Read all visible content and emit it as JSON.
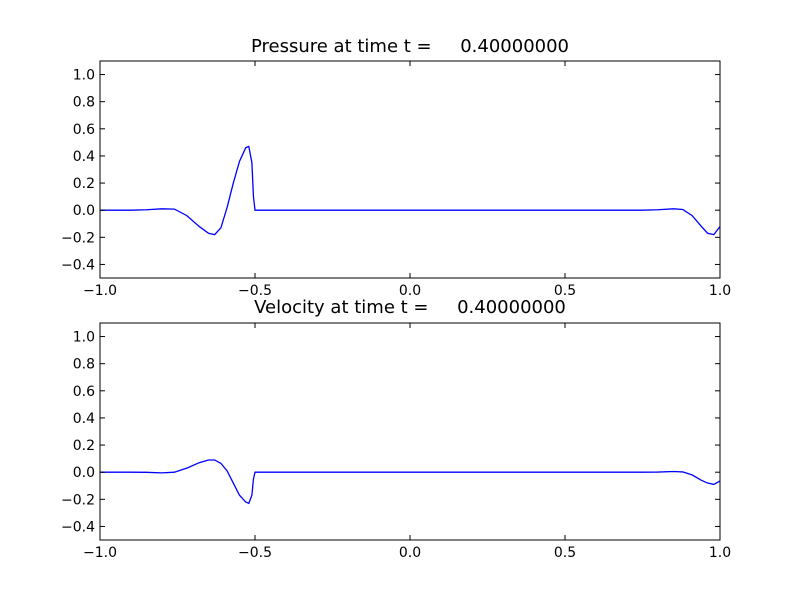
{
  "chart_data": [
    {
      "type": "line",
      "title": "Pressure at time t =     0.40000000",
      "xlabel": "",
      "ylabel": "",
      "xlim": [
        -1.0,
        1.0
      ],
      "ylim": [
        -0.5,
        1.1
      ],
      "xticks": [
        -1.0,
        -0.5,
        0.0,
        0.5,
        1.0
      ],
      "xtick_labels": [
        "−1.0",
        "−0.5",
        "0.0",
        "0.5",
        "1.0"
      ],
      "yticks": [
        -0.4,
        -0.2,
        0.0,
        0.2,
        0.4,
        0.6,
        0.8,
        1.0
      ],
      "ytick_labels": [
        "−0.4",
        "−0.2",
        "0.0",
        "0.2",
        "0.4",
        "0.6",
        "0.8",
        "1.0"
      ],
      "grid": false,
      "color": "#0000ff",
      "series": [
        {
          "x": [
            -1.0,
            -0.9,
            -0.85,
            -0.8,
            -0.76,
            -0.72,
            -0.68,
            -0.65,
            -0.63,
            -0.61,
            -0.59,
            -0.57,
            -0.55,
            -0.53,
            -0.52,
            -0.51,
            -0.505,
            -0.5,
            -0.49,
            -0.4,
            -0.2,
            0.0,
            0.2,
            0.4,
            0.6,
            0.7,
            0.75,
            0.8,
            0.85,
            0.88,
            0.91,
            0.94,
            0.96,
            0.98,
            1.0
          ],
          "y": [
            0.0,
            0.0,
            0.003,
            0.01,
            0.008,
            -0.04,
            -0.12,
            -0.17,
            -0.18,
            -0.13,
            0.02,
            0.2,
            0.36,
            0.46,
            0.47,
            0.35,
            0.1,
            0.0,
            0.0,
            0.0,
            0.0,
            0.0,
            0.0,
            0.0,
            0.0,
            0.0,
            0.0,
            0.003,
            0.01,
            0.005,
            -0.04,
            -0.12,
            -0.17,
            -0.18,
            -0.12
          ]
        }
      ]
    },
    {
      "type": "line",
      "title": "Velocity at time t =     0.40000000",
      "xlabel": "",
      "ylabel": "",
      "xlim": [
        -1.0,
        1.0
      ],
      "ylim": [
        -0.5,
        1.1
      ],
      "xticks": [
        -1.0,
        -0.5,
        0.0,
        0.5,
        1.0
      ],
      "xtick_labels": [
        "−1.0",
        "−0.5",
        "0.0",
        "0.5",
        "1.0"
      ],
      "yticks": [
        -0.4,
        -0.2,
        0.0,
        0.2,
        0.4,
        0.6,
        0.8,
        1.0
      ],
      "ytick_labels": [
        "−0.4",
        "−0.2",
        "0.0",
        "0.2",
        "0.4",
        "0.6",
        "0.8",
        "1.0"
      ],
      "grid": false,
      "color": "#0000ff",
      "series": [
        {
          "x": [
            -1.0,
            -0.9,
            -0.85,
            -0.8,
            -0.76,
            -0.72,
            -0.68,
            -0.65,
            -0.63,
            -0.61,
            -0.59,
            -0.57,
            -0.55,
            -0.53,
            -0.52,
            -0.51,
            -0.505,
            -0.5,
            -0.49,
            -0.4,
            -0.2,
            0.0,
            0.2,
            0.4,
            0.6,
            0.7,
            0.75,
            0.8,
            0.85,
            0.88,
            0.91,
            0.94,
            0.96,
            0.98,
            1.0
          ],
          "y": [
            0.0,
            0.0,
            -0.001,
            -0.005,
            0.0,
            0.03,
            0.07,
            0.09,
            0.09,
            0.065,
            0.01,
            -0.08,
            -0.17,
            -0.22,
            -0.23,
            -0.17,
            -0.05,
            0.0,
            0.0,
            0.0,
            0.0,
            0.0,
            0.0,
            0.0,
            0.0,
            0.0,
            0.0,
            0.001,
            0.005,
            0.002,
            -0.02,
            -0.06,
            -0.08,
            -0.09,
            -0.065
          ]
        }
      ]
    }
  ]
}
